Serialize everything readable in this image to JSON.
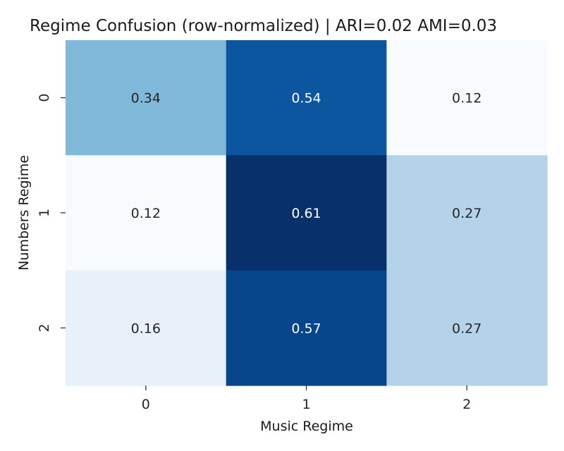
{
  "chart_data": {
    "type": "heatmap",
    "title": "Regime Confusion (row-normalized) | ARI=0.02 AMI=0.03",
    "xlabel": "Music Regime",
    "ylabel": "Numbers Regime",
    "x_categories": [
      "0",
      "1",
      "2"
    ],
    "y_categories": [
      "0",
      "1",
      "2"
    ],
    "values": [
      [
        0.34,
        0.54,
        0.12
      ],
      [
        0.12,
        0.61,
        0.27
      ],
      [
        0.16,
        0.57,
        0.27
      ]
    ],
    "value_labels": [
      [
        "0.34",
        "0.54",
        "0.12"
      ],
      [
        "0.12",
        "0.61",
        "0.27"
      ],
      [
        "0.16",
        "0.57",
        "0.27"
      ]
    ],
    "colormap": "Blues",
    "color_range": [
      0.12,
      0.61
    ],
    "colorbar": false,
    "grid": false
  }
}
